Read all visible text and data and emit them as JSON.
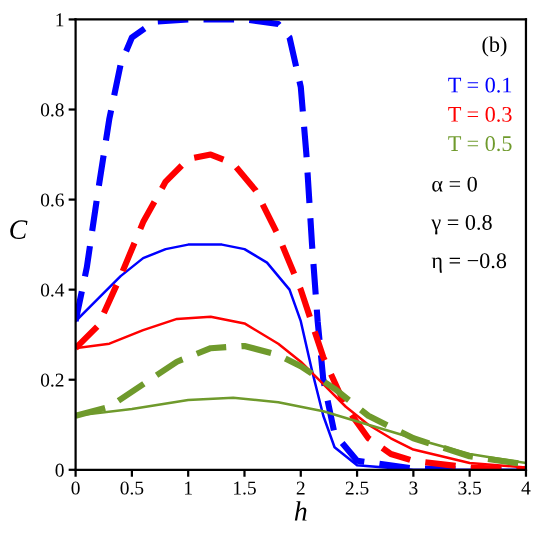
{
  "chart_data": {
    "type": "line",
    "xlabel": "h",
    "ylabel": "C",
    "xlim": [
      0,
      4
    ],
    "ylim": [
      0,
      1
    ],
    "xticks": [
      0,
      0.5,
      1,
      1.5,
      2,
      2.5,
      3,
      3.5,
      4
    ],
    "yticks": [
      0,
      0.2,
      0.4,
      0.6,
      0.8,
      1
    ],
    "grid": false,
    "legend": "top right",
    "marker": "none",
    "annotations": [
      "(b)",
      "α = 0",
      "γ = 0.8",
      "η = −0.8"
    ],
    "series": [
      {
        "name": "T = 0.1",
        "color": "#0000ff",
        "line_style": "dashed",
        "x": [
          0,
          0.1,
          0.2,
          0.3,
          0.4,
          0.5,
          0.7,
          1,
          1.5,
          1.8,
          1.9,
          2,
          2.05,
          2.1,
          2.15,
          2.2,
          2.3,
          2.5,
          3,
          4
        ],
        "values": [
          0.33,
          0.45,
          0.62,
          0.78,
          0.9,
          0.96,
          0.995,
          1,
          1,
          0.99,
          0.96,
          0.85,
          0.7,
          0.5,
          0.33,
          0.2,
          0.08,
          0.02,
          0.003,
          0
        ]
      },
      {
        "color": "#0000ff",
        "line_style": "solid",
        "x": [
          0,
          0.2,
          0.4,
          0.6,
          0.8,
          1,
          1.3,
          1.5,
          1.7,
          1.9,
          2,
          2.1,
          2.2,
          2.3,
          2.5,
          3,
          4
        ],
        "values": [
          0.33,
          0.38,
          0.43,
          0.47,
          0.49,
          0.5,
          0.5,
          0.49,
          0.46,
          0.4,
          0.33,
          0.22,
          0.12,
          0.05,
          0.01,
          0,
          0
        ]
      },
      {
        "name": "T = 0.3",
        "color": "#ff0000",
        "line_style": "dashed",
        "x": [
          0,
          0.2,
          0.4,
          0.6,
          0.8,
          1,
          1.2,
          1.4,
          1.6,
          1.8,
          2,
          2.2,
          2.4,
          2.6,
          2.8,
          3,
          3.5,
          4
        ],
        "values": [
          0.27,
          0.32,
          0.43,
          0.55,
          0.64,
          0.69,
          0.7,
          0.68,
          0.62,
          0.52,
          0.4,
          0.25,
          0.14,
          0.07,
          0.035,
          0.02,
          0.005,
          0
        ]
      },
      {
        "color": "#ff0000",
        "line_style": "solid",
        "x": [
          0,
          0.3,
          0.6,
          0.9,
          1.2,
          1.5,
          1.8,
          2,
          2.2,
          2.4,
          2.6,
          2.8,
          3,
          3.5,
          4
        ],
        "values": [
          0.27,
          0.28,
          0.31,
          0.335,
          0.34,
          0.325,
          0.28,
          0.24,
          0.19,
          0.14,
          0.1,
          0.07,
          0.045,
          0.015,
          0.005
        ]
      },
      {
        "name": "T = 0.5",
        "color": "#6f9a2c",
        "line_style": "dashed",
        "x": [
          0,
          0.3,
          0.6,
          0.9,
          1.2,
          1.5,
          1.8,
          2,
          2.3,
          2.6,
          3,
          3.5,
          4
        ],
        "values": [
          0.12,
          0.14,
          0.19,
          0.24,
          0.27,
          0.275,
          0.255,
          0.23,
          0.18,
          0.12,
          0.07,
          0.03,
          0.012
        ]
      },
      {
        "color": "#6f9a2c",
        "line_style": "solid",
        "x": [
          0,
          0.5,
          1,
          1.4,
          1.8,
          2.2,
          2.6,
          3,
          3.5,
          4
        ],
        "values": [
          0.12,
          0.135,
          0.155,
          0.16,
          0.15,
          0.13,
          0.1,
          0.07,
          0.035,
          0.015
        ]
      }
    ]
  }
}
